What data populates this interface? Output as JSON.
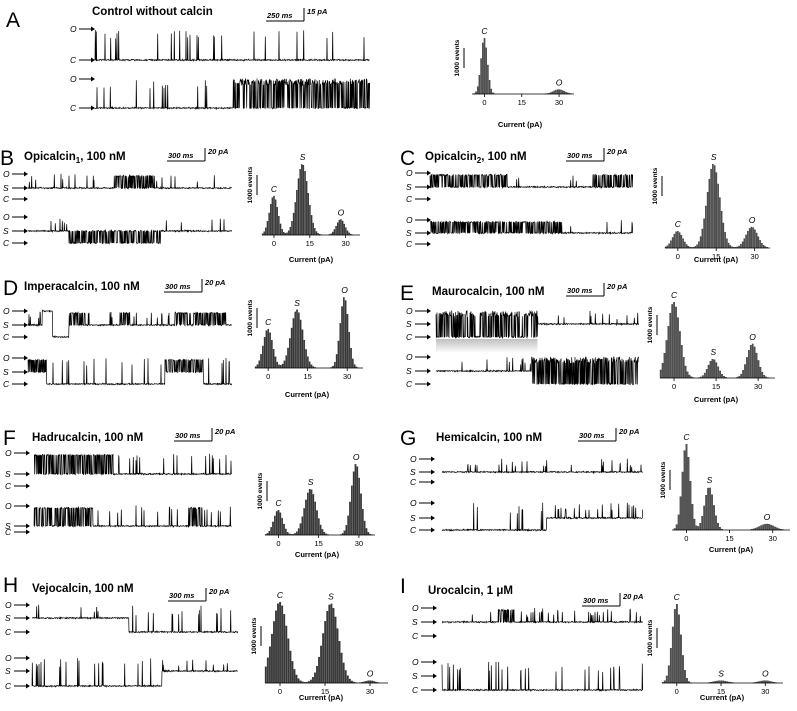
{
  "panels": [
    {
      "id": "A",
      "letter": "A",
      "title": "Control without calcin",
      "scale": {
        "time": "250 ms",
        "current": "15 pA"
      },
      "states": [
        "O",
        "C"
      ],
      "hist": {
        "xticks": [
          "0",
          "15",
          "30"
        ],
        "xlabel": "Current (pA)",
        "ylabel": "1000 events",
        "peak_labels": [
          {
            "name": "C",
            "value": 0
          },
          {
            "name": "O",
            "value": 30
          }
        ]
      }
    },
    {
      "id": "B",
      "letter": "B",
      "title_main": "Opicalcin",
      "title_sub": "1",
      "title_rest": ", 100 nM",
      "scale": {
        "time": "300 ms",
        "current": "20 pA"
      },
      "states": [
        "O",
        "S",
        "C"
      ],
      "hist": {
        "xticks": [
          "0",
          "15",
          "30"
        ],
        "xlabel": "Current (pA)",
        "ylabel": "1000 events",
        "peak_labels": [
          {
            "name": "C",
            "value": 0
          },
          {
            "name": "S",
            "value": 12
          },
          {
            "name": "O",
            "value": 28
          }
        ]
      }
    },
    {
      "id": "C",
      "letter": "C",
      "title_main": "Opicalcin",
      "title_sub": "2",
      "title_rest": ", 100 nM",
      "scale": {
        "time": "300 ms",
        "current": "20 pA"
      },
      "states": [
        "O",
        "S",
        "C"
      ],
      "hist": {
        "xticks": [
          "0",
          "15",
          "30"
        ],
        "xlabel": "Current (pA)",
        "ylabel": "1000 events",
        "peak_labels": [
          {
            "name": "C",
            "value": 0
          },
          {
            "name": "S",
            "value": 14
          },
          {
            "name": "O",
            "value": 29
          }
        ]
      }
    },
    {
      "id": "D",
      "letter": "D",
      "title": "Imperacalcin, 100 nM",
      "scale": {
        "time": "300 ms",
        "current": "20 pA"
      },
      "states": [
        "O",
        "S",
        "C"
      ],
      "hist": {
        "xticks": [
          "0",
          "15",
          "30"
        ],
        "xlabel": "Current (pA)",
        "ylabel": "1000 events",
        "peak_labels": [
          {
            "name": "C",
            "value": 0
          },
          {
            "name": "S",
            "value": 11
          },
          {
            "name": "O",
            "value": 29
          }
        ]
      }
    },
    {
      "id": "E",
      "letter": "E",
      "title": "Maurocalcin, 100 nM",
      "scale": {
        "time": "300 ms",
        "current": "20 pA"
      },
      "states": [
        "O",
        "S",
        "C"
      ],
      "hist": {
        "xticks": [
          "0",
          "15",
          "30"
        ],
        "xlabel": "Current (pA)",
        "ylabel": "1000 events",
        "peak_labels": [
          {
            "name": "C",
            "value": 0
          },
          {
            "name": "S",
            "value": 14
          },
          {
            "name": "O",
            "value": 28
          }
        ]
      }
    },
    {
      "id": "F",
      "letter": "F",
      "title": "Hadrucalcin, 100 nM",
      "scale": {
        "time": "300 ms",
        "current": "20 pA"
      },
      "states": [
        "O",
        "S",
        "C"
      ],
      "hist": {
        "xticks": [
          "0",
          "15",
          "30"
        ],
        "xlabel": "Current (pA)",
        "ylabel": "1000 events",
        "peak_labels": [
          {
            "name": "C",
            "value": 0
          },
          {
            "name": "S",
            "value": 12
          },
          {
            "name": "O",
            "value": 29
          }
        ]
      }
    },
    {
      "id": "G",
      "letter": "G",
      "title": "Hemicalcin, 100 nM",
      "scale": {
        "time": "300 ms",
        "current": "20 pA"
      },
      "states": [
        "O",
        "S",
        "C"
      ],
      "hist": {
        "xticks": [
          "0",
          "15",
          "30"
        ],
        "xlabel": "Current (pA)",
        "ylabel": "1000 events",
        "peak_labels": [
          {
            "name": "C",
            "value": 0
          },
          {
            "name": "S",
            "value": 8
          },
          {
            "name": "O",
            "value": 28
          }
        ]
      }
    },
    {
      "id": "H",
      "letter": "H",
      "title": "Vejocalcin, 100 nM",
      "scale": {
        "time": "300 ms",
        "current": "20 pA"
      },
      "states": [
        "O",
        "S",
        "C"
      ],
      "hist": {
        "xticks": [
          "0",
          "15",
          "30"
        ],
        "xlabel": "Current (pA)",
        "ylabel": "1000 events",
        "peak_labels": [
          {
            "name": "C",
            "value": 0
          },
          {
            "name": "S",
            "value": 17
          },
          {
            "name": "O",
            "value": 30
          }
        ]
      }
    },
    {
      "id": "I",
      "letter": "I",
      "title": "Urocalcin, 1 μM",
      "scale": {
        "time": "300 ms",
        "current": "20 pA"
      },
      "states": [
        "O",
        "S",
        "C"
      ],
      "hist": {
        "xticks": [
          "0",
          "15",
          "30"
        ],
        "xlabel": "Current (pA)",
        "ylabel": "1000 events",
        "peak_labels": [
          {
            "name": "C",
            "value": 0
          },
          {
            "name": "S",
            "value": 15
          },
          {
            "name": "O",
            "value": 30
          }
        ]
      }
    }
  ],
  "chart_data": [
    {
      "type": "bar",
      "panel": "A",
      "xlabel": "Current (pA)",
      "ylabel": "1000 events",
      "xlim": [
        -5,
        36
      ],
      "peaks": [
        {
          "label": "C",
          "mean": 0,
          "sd": 1.3,
          "height": 1.0
        },
        {
          "label": "O",
          "mean": 30,
          "sd": 2.2,
          "height": 0.08
        }
      ]
    },
    {
      "type": "bar",
      "panel": "B",
      "xlabel": "Current (pA)",
      "ylabel": "1000 events",
      "xlim": [
        -5,
        36
      ],
      "peaks": [
        {
          "label": "C",
          "mean": 0,
          "sd": 1.8,
          "height": 0.55
        },
        {
          "label": "S",
          "mean": 12,
          "sd": 2.4,
          "height": 1.0
        },
        {
          "label": "O",
          "mean": 28,
          "sd": 1.8,
          "height": 0.22
        }
      ]
    },
    {
      "type": "bar",
      "panel": "C",
      "xlabel": "Current (pA)",
      "ylabel": "1000 events",
      "xlim": [
        -5,
        36
      ],
      "peaks": [
        {
          "label": "C",
          "mean": 0,
          "sd": 2.0,
          "height": 0.2
        },
        {
          "label": "S",
          "mean": 14,
          "sd": 2.5,
          "height": 1.0
        },
        {
          "label": "O",
          "mean": 29,
          "sd": 2.3,
          "height": 0.25
        }
      ]
    },
    {
      "type": "bar",
      "panel": "D",
      "xlabel": "Current (pA)",
      "ylabel": "1000 events",
      "xlim": [
        -5,
        36
      ],
      "peaks": [
        {
          "label": "C",
          "mean": 0,
          "sd": 1.8,
          "height": 0.55
        },
        {
          "label": "S",
          "mean": 11,
          "sd": 2.3,
          "height": 0.82
        },
        {
          "label": "O",
          "mean": 29,
          "sd": 1.6,
          "height": 1.0
        }
      ]
    },
    {
      "type": "bar",
      "panel": "E",
      "xlabel": "Current (pA)",
      "ylabel": "1000 events",
      "xlim": [
        -5,
        36
      ],
      "peaks": [
        {
          "label": "C",
          "mean": 0,
          "sd": 2.2,
          "height": 1.0
        },
        {
          "label": "S",
          "mean": 14,
          "sd": 1.8,
          "height": 0.25
        },
        {
          "label": "O",
          "mean": 28,
          "sd": 1.9,
          "height": 0.45
        }
      ]
    },
    {
      "type": "bar",
      "panel": "F",
      "xlabel": "Current (pA)",
      "ylabel": "1000 events",
      "xlim": [
        -5,
        36
      ],
      "peaks": [
        {
          "label": "C",
          "mean": 0,
          "sd": 1.7,
          "height": 0.35
        },
        {
          "label": "S",
          "mean": 12,
          "sd": 2.2,
          "height": 0.65
        },
        {
          "label": "O",
          "mean": 29,
          "sd": 1.8,
          "height": 1.0
        }
      ]
    },
    {
      "type": "bar",
      "panel": "G",
      "xlabel": "Current (pA)",
      "ylabel": "1000 events",
      "xlim": [
        -5,
        36
      ],
      "peaks": [
        {
          "label": "C",
          "mean": 0,
          "sd": 1.4,
          "height": 1.0
        },
        {
          "label": "S",
          "mean": 8,
          "sd": 1.6,
          "height": 0.5
        },
        {
          "label": "O",
          "mean": 28,
          "sd": 2.5,
          "height": 0.07
        }
      ]
    },
    {
      "type": "bar",
      "panel": "H",
      "xlabel": "Current (pA)",
      "ylabel": "1000 events",
      "xlim": [
        -5,
        36
      ],
      "peaks": [
        {
          "label": "C",
          "mean": 0,
          "sd": 2.6,
          "height": 1.0
        },
        {
          "label": "S",
          "mean": 17,
          "sd": 2.6,
          "height": 0.98
        },
        {
          "label": "O",
          "mean": 30,
          "sd": 1.6,
          "height": 0.03
        }
      ]
    },
    {
      "type": "bar",
      "panel": "I",
      "xlabel": "Current (pA)",
      "ylabel": "1000 events",
      "xlim": [
        -5,
        36
      ],
      "peaks": [
        {
          "label": "C",
          "mean": 0,
          "sd": 1.5,
          "height": 1.0
        },
        {
          "label": "S",
          "mean": 15,
          "sd": 2.2,
          "height": 0.03
        },
        {
          "label": "O",
          "mean": 30,
          "sd": 2.0,
          "height": 0.03
        }
      ]
    }
  ]
}
